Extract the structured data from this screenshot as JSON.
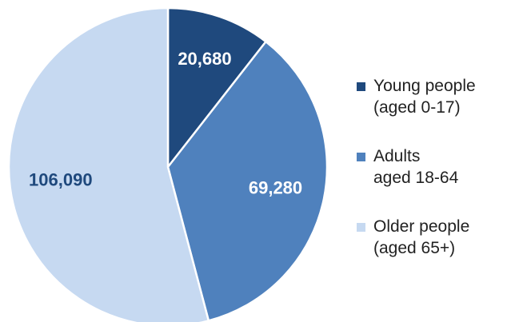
{
  "chart_data": {
    "type": "pie",
    "title": "",
    "slices": [
      {
        "value": 20680,
        "label": "20,680",
        "color": "#1f497d",
        "label_color": "#ffffff"
      },
      {
        "value": 69280,
        "label": "69,280",
        "color": "#4f81bd",
        "label_color": "#ffffff"
      },
      {
        "value": 106090,
        "label": "106,090",
        "color": "#c6d9f1",
        "label_color": "#1f497d"
      }
    ],
    "start_angle_deg": 0,
    "direction": "clockwise",
    "legend": {
      "position": "right",
      "items": [
        {
          "lines": [
            "Young people",
            "(aged 0-17)"
          ],
          "color": "#1f497d"
        },
        {
          "lines": [
            "Adults",
            "aged 18-64"
          ],
          "color": "#4f81bd"
        },
        {
          "lines": [
            "Older people",
            "(aged 65+)"
          ],
          "color": "#c6d9f1"
        }
      ]
    }
  }
}
